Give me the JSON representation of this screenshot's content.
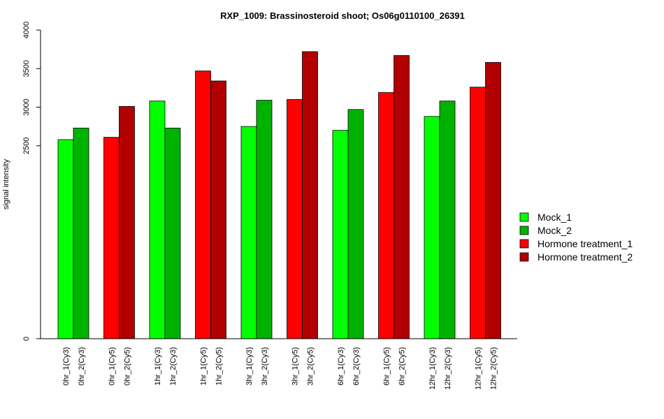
{
  "chart_data": {
    "type": "bar",
    "title": "RXP_1009: Brassinosteroid shoot; Os06g0110100_26391",
    "ylabel": "signal intensity",
    "xlabel": "",
    "y_tick_values": [
      0,
      2500,
      3000,
      3500,
      4000
    ],
    "y_tick_labels": [
      "0",
      "2500",
      "3000",
      "3500",
      "4000"
    ],
    "ylim": [
      0,
      4000
    ],
    "legend_position": "right",
    "legend": [
      {
        "label": "Mock_1",
        "color": "#00FF00"
      },
      {
        "label": "Mock_2",
        "color": "#00B200"
      },
      {
        "label": "Hormone treatment_1",
        "color": "#FF0000"
      },
      {
        "label": "Hormone treatment_2",
        "color": "#B20000"
      }
    ],
    "bars": [
      {
        "label": "0hr_1(Cy3)",
        "value": 2580,
        "series": 0
      },
      {
        "label": "0hr_2(Cy3)",
        "value": 2730,
        "series": 1
      },
      {
        "label": "0hr_1(Cy5)",
        "value": 2610,
        "series": 2
      },
      {
        "label": "0hr_2(Cy5)",
        "value": 3010,
        "series": 3
      },
      {
        "label": "1hr_1(Cy3)",
        "value": 3080,
        "series": 0
      },
      {
        "label": "1hr_2(Cy3)",
        "value": 2730,
        "series": 1
      },
      {
        "label": "1hr_1(Cy5)",
        "value": 3470,
        "series": 2
      },
      {
        "label": "1hr_2(Cy5)",
        "value": 3340,
        "series": 3
      },
      {
        "label": "3hr_1(Cy3)",
        "value": 2750,
        "series": 0
      },
      {
        "label": "3hr_2(Cy3)",
        "value": 3090,
        "series": 1
      },
      {
        "label": "3hr_1(Cy5)",
        "value": 3100,
        "series": 2
      },
      {
        "label": "3hr_2(Cy5)",
        "value": 3720,
        "series": 3
      },
      {
        "label": "6hr_1(Cy3)",
        "value": 2700,
        "series": 0
      },
      {
        "label": "6hr_2(Cy3)",
        "value": 2970,
        "series": 1
      },
      {
        "label": "6hr_1(Cy5)",
        "value": 3190,
        "series": 2
      },
      {
        "label": "6hr_2(Cy5)",
        "value": 3670,
        "series": 3
      },
      {
        "label": "12hr_1(Cy3)",
        "value": 2880,
        "series": 0
      },
      {
        "label": "12hr_2(Cy3)",
        "value": 3080,
        "series": 1
      },
      {
        "label": "12hr_1(Cy5)",
        "value": 3260,
        "series": 2
      },
      {
        "label": "12hr_2(Cy5)",
        "value": 3580,
        "series": 3
      }
    ]
  }
}
